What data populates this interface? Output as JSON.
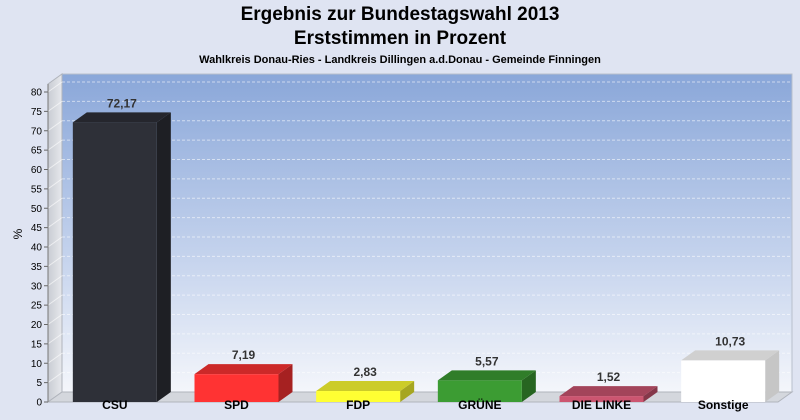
{
  "chart_data": {
    "type": "bar",
    "title": "Ergebnis zur Bundestagswahl 2013",
    "title2": "Erststimmen in Prozent",
    "subtitle": "Wahlkreis Donau-Ries - Landkreis Dillingen a.d.Donau - Gemeinde Finningen",
    "ylabel": "%",
    "ylim": [
      0,
      80
    ],
    "yticks": [
      0,
      5,
      10,
      15,
      20,
      25,
      30,
      35,
      40,
      45,
      50,
      55,
      60,
      65,
      70,
      75,
      80
    ],
    "categories": [
      "CSU",
      "SPD",
      "FDP",
      "GRÜNE",
      "DIE LINKE",
      "Sonstige"
    ],
    "values": [
      72.17,
      7.19,
      2.83,
      5.57,
      1.52,
      10.73
    ],
    "value_labels": [
      "72,17",
      "7,19",
      "2,83",
      "5,57",
      "1,52",
      "10,73"
    ],
    "colors": [
      "#2e3038",
      "#ff3333",
      "#ffff33",
      "#3c9c33",
      "#cc5570",
      "#ffffff"
    ],
    "grid": true
  }
}
